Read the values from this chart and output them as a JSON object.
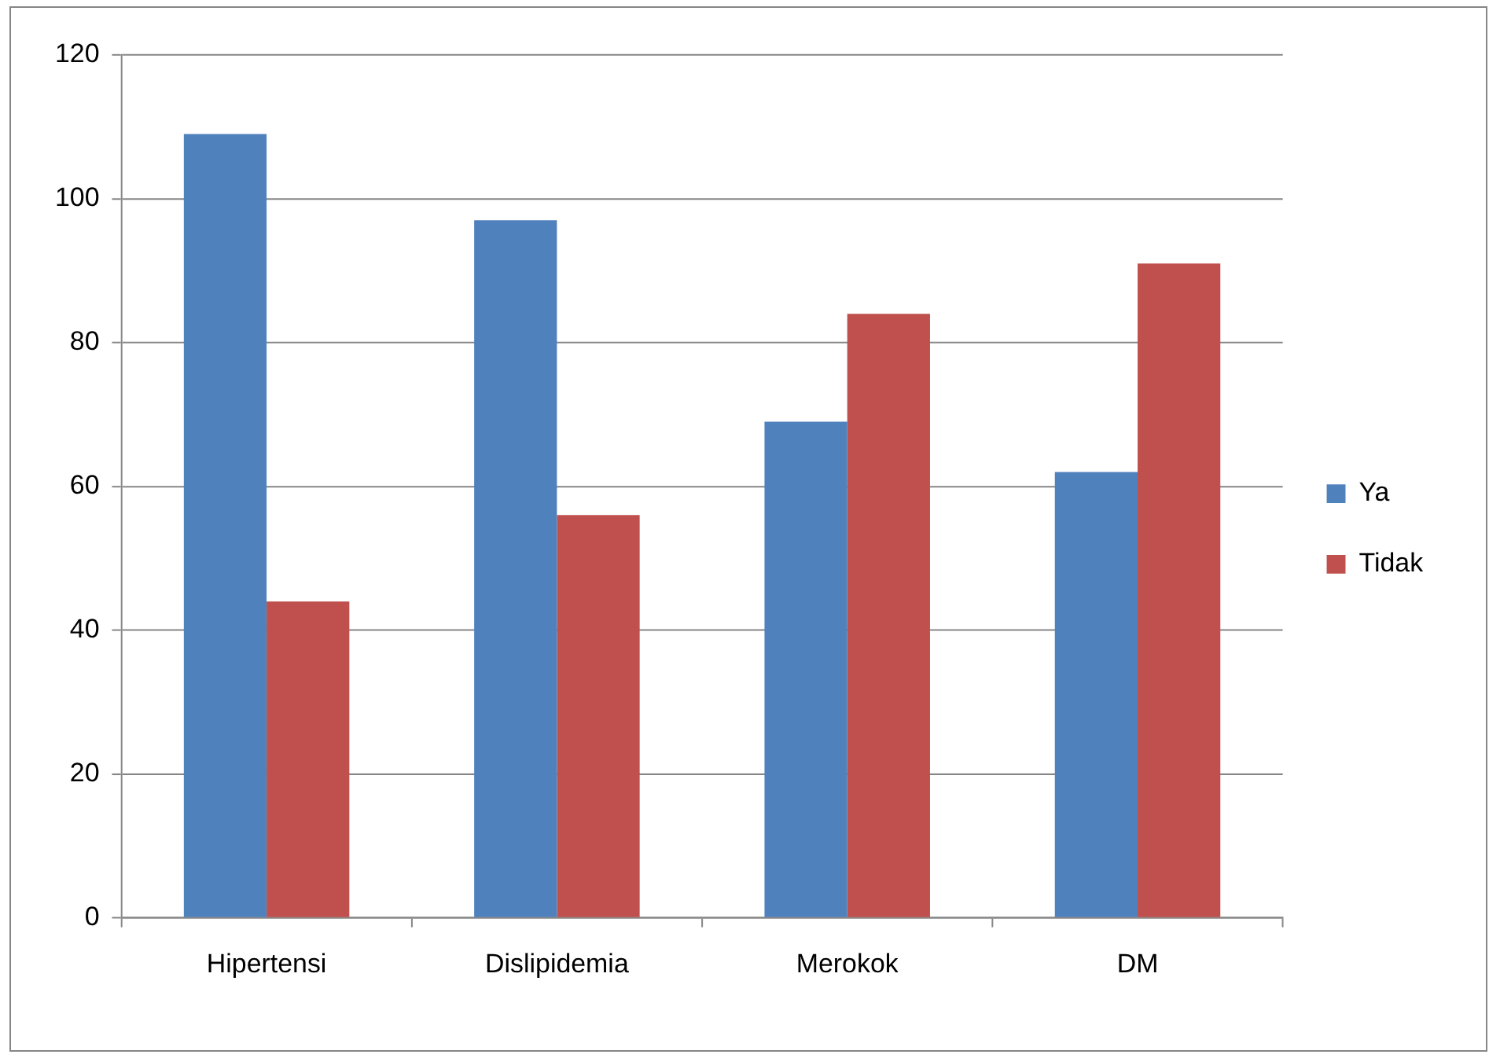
{
  "chart_data": {
    "type": "bar",
    "categories": [
      "Hipertensi",
      "Dislipidemia",
      "Merokok",
      "DM"
    ],
    "series": [
      {
        "name": "Ya",
        "color": "#4f81bd",
        "values": [
          109,
          97,
          69,
          62
        ]
      },
      {
        "name": "Tidak",
        "color": "#c0504d",
        "values": [
          44,
          56,
          84,
          91
        ]
      }
    ],
    "ylim": [
      0,
      120
    ],
    "yticks": [
      0,
      20,
      40,
      60,
      80,
      100,
      120
    ],
    "grid": "y",
    "legend": "right"
  }
}
